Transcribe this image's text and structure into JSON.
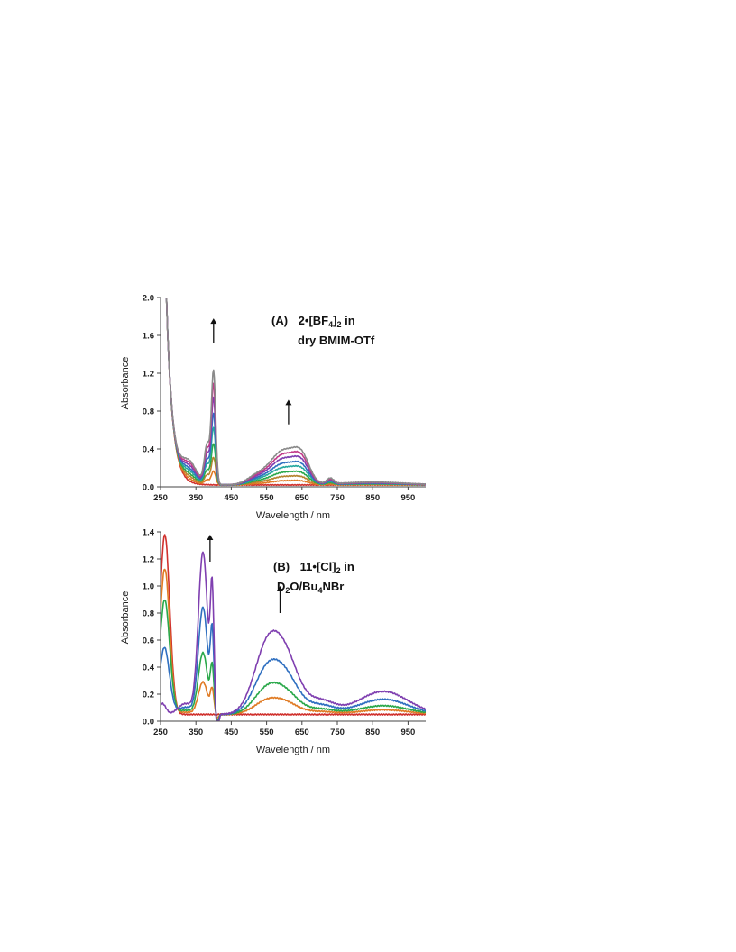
{
  "chart_data": [
    {
      "type": "line",
      "panel": "A",
      "annotation": {
        "tag": "(A)",
        "line1_main": "2•[BF",
        "line1_sub": "4",
        "line1_close": "]",
        "line1_sub2": "2",
        "line1_tail": " in",
        "line2": "dry BMIM-OTf"
      },
      "xlabel": "Wavelength / nm",
      "ylabel": "Absorbance",
      "xlim": [
        250,
        1000
      ],
      "ylim": [
        0,
        2.0
      ],
      "xticks": [
        "250",
        "350",
        "450",
        "550",
        "650",
        "750",
        "850",
        "950"
      ],
      "yticks": [
        "0.0",
        "0.4",
        "0.8",
        "1.2",
        "1.6",
        "2.0"
      ],
      "grid": false,
      "arrows": [
        {
          "x": 400,
          "y_from": 1.52,
          "y_to": 1.78
        },
        {
          "x": 612,
          "y_from": 0.66,
          "y_to": 0.92
        }
      ],
      "series": [
        {
          "color": "#d0312d",
          "scale": 0.0
        },
        {
          "color": "#e07b24",
          "scale": 0.12
        },
        {
          "color": "#b5842f",
          "scale": 0.24
        },
        {
          "color": "#2aa84a",
          "scale": 0.36
        },
        {
          "color": "#28a9a0",
          "scale": 0.5
        },
        {
          "color": "#2f6fc0",
          "scale": 0.62
        },
        {
          "color": "#7f3fb0",
          "scale": 0.76
        },
        {
          "color": "#c23b8a",
          "scale": 0.88
        },
        {
          "color": "#8a8a8a",
          "scale": 1.0
        }
      ]
    },
    {
      "type": "line",
      "panel": "B",
      "annotation": {
        "tag": "(B)",
        "line1_main": "11•[Cl]",
        "line1_sub": "2",
        "line1_tail": " in",
        "line2_a": "D",
        "line2_sub1": "2",
        "line2_b": "O/Bu",
        "line2_sub2": "4",
        "line2_c": "NBr"
      },
      "xlabel": "Wavelength / nm",
      "ylabel": "Absorbance",
      "xlim": [
        250,
        1000
      ],
      "ylim": [
        0,
        1.4
      ],
      "xticks": [
        "250",
        "350",
        "450",
        "550",
        "650",
        "750",
        "850",
        "950"
      ],
      "yticks": [
        "0.0",
        "0.2",
        "0.4",
        "0.6",
        "0.8",
        "1.0",
        "1.2",
        "1.4"
      ],
      "grid": false,
      "arrows": [
        {
          "x": 390,
          "y_from": 1.18,
          "y_to": 1.38
        },
        {
          "x": 588,
          "y_from": 0.8,
          "y_to": 1.0
        }
      ],
      "series": [
        {
          "color": "#d0312d",
          "scale": 0.0
        },
        {
          "color": "#e07b24",
          "scale": 0.2
        },
        {
          "color": "#2aa84a",
          "scale": 0.38
        },
        {
          "color": "#2f6fc0",
          "scale": 0.66
        },
        {
          "color": "#7f3fb0",
          "scale": 1.0
        }
      ]
    }
  ]
}
